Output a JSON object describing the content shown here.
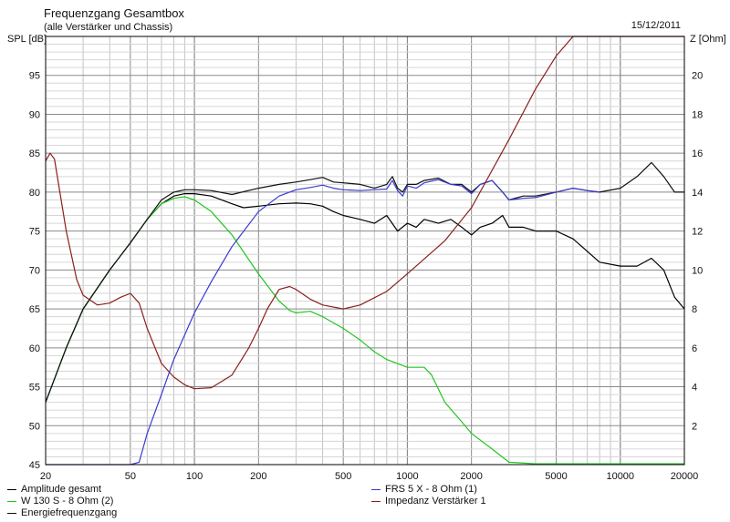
{
  "header": {
    "title": "Frequenzgang Gesamtbox",
    "subtitle": "(alle Verstärker und Chassis)",
    "date": "15/12/2011",
    "left_axis_label": "SPL [dB]",
    "right_axis_label": "Z [Ohm]"
  },
  "chart_data": {
    "type": "line",
    "x_scale": "log",
    "xlim": [
      20,
      20000
    ],
    "ylim_left": [
      45,
      100
    ],
    "ylim_right": [
      0,
      22
    ],
    "grid": true,
    "x_ticks": [
      "20",
      "50",
      "100",
      "200",
      "500",
      "1000",
      "2000",
      "5000",
      "10000",
      "20000"
    ],
    "y_ticks_left": [
      "45",
      "50",
      "55",
      "60",
      "65",
      "70",
      "75",
      "80",
      "85",
      "90",
      "95"
    ],
    "y_ticks_right": [
      "2",
      "4",
      "6",
      "8",
      "10",
      "12",
      "14",
      "16",
      "18",
      "20"
    ],
    "legend_placement": "bottom",
    "series": [
      {
        "name": "Amplitude gesamt",
        "axis": "left",
        "color": "#000000",
        "x": [
          20,
          25,
          30,
          40,
          50,
          60,
          70,
          80,
          90,
          100,
          120,
          150,
          170,
          200,
          250,
          300,
          350,
          400,
          450,
          500,
          600,
          700,
          800,
          900,
          1000,
          1100,
          1200,
          1400,
          1600,
          1800,
          2000,
          2200,
          2500,
          2800,
          3000,
          3500,
          4000,
          5000,
          6000,
          8000,
          10000,
          12000,
          14000,
          16000,
          18000,
          20000
        ],
        "y": [
          53,
          60,
          65,
          70,
          73.5,
          76.5,
          78.5,
          79.5,
          79.8,
          79.8,
          79.5,
          78.5,
          78,
          78.2,
          78.5,
          78.6,
          78.5,
          78.2,
          77.5,
          77,
          76.5,
          76,
          77,
          75,
          76,
          75.5,
          76.5,
          76,
          76.5,
          75.5,
          74.5,
          75.5,
          76,
          77,
          75.5,
          75.5,
          75,
          75,
          74,
          71,
          70.5,
          70.5,
          71.5,
          70,
          66.5,
          65
        ]
      },
      {
        "name": "W 130 S - 8 Ohm (2)",
        "axis": "left",
        "color": "#22c522",
        "x": [
          20,
          25,
          30,
          40,
          50,
          60,
          70,
          80,
          90,
          100,
          120,
          150,
          200,
          250,
          280,
          300,
          350,
          400,
          500,
          600,
          700,
          800,
          1000,
          1200,
          1300,
          1500,
          1800,
          2000,
          2500,
          3000,
          4000,
          5000,
          10000,
          20000
        ],
        "y": [
          53,
          60,
          65,
          70,
          73.5,
          76.5,
          78.5,
          79.2,
          79.4,
          79,
          77.5,
          74.5,
          69.5,
          66,
          64.8,
          64.5,
          64.7,
          64,
          62.5,
          61,
          59.5,
          58.5,
          57.5,
          57.5,
          56.5,
          53,
          50.5,
          49,
          47,
          45.3,
          45.1,
          45.1,
          45.1,
          45.1
        ]
      },
      {
        "name": "Energiefrequenzgang",
        "axis": "left",
        "color": "#111111",
        "x": [
          20,
          25,
          30,
          40,
          50,
          60,
          70,
          80,
          90,
          100,
          120,
          150,
          200,
          250,
          300,
          350,
          400,
          450,
          500,
          600,
          700,
          800,
          850,
          900,
          950,
          1000,
          1100,
          1200,
          1400,
          1600,
          1800,
          2000,
          2200,
          2500,
          2800,
          3000,
          3500,
          4000,
          5000,
          6000,
          7000,
          8000,
          10000,
          12000,
          14000,
          16000,
          18000,
          20000
        ],
        "y": [
          53,
          60,
          65,
          70,
          73.5,
          76.5,
          79,
          80,
          80.3,
          80.3,
          80.2,
          79.7,
          80.5,
          81,
          81.3,
          81.6,
          81.9,
          81.3,
          81.2,
          81,
          80.5,
          81,
          82,
          80.5,
          80,
          81,
          81,
          81.5,
          81.8,
          81,
          81,
          80,
          81,
          81.5,
          80,
          79,
          79.5,
          79.5,
          80,
          80.5,
          80.2,
          80,
          80.5,
          82,
          83.8,
          82,
          80,
          80
        ]
      },
      {
        "name": "FRS 5 X - 8 Ohm (1)",
        "axis": "left",
        "color": "#3a3ad0",
        "x": [
          20,
          30,
          40,
          50,
          55,
          60,
          70,
          80,
          100,
          120,
          150,
          200,
          250,
          300,
          350,
          400,
          450,
          500,
          600,
          700,
          800,
          850,
          900,
          950,
          1000,
          1100,
          1200,
          1400,
          1600,
          1800,
          2000,
          2200,
          2500,
          2800,
          3000,
          3500,
          4000,
          5000,
          6000,
          7000,
          8000
        ],
        "y": [
          45,
          45,
          45,
          45,
          45.3,
          49,
          54,
          58.5,
          64.5,
          68.5,
          73,
          77.5,
          79.5,
          80.3,
          80.6,
          80.9,
          80.5,
          80.3,
          80.2,
          80.3,
          80.4,
          81.5,
          80.2,
          79.5,
          80.8,
          80.5,
          81.2,
          81.6,
          81,
          80.8,
          79.8,
          81,
          81.5,
          80,
          79,
          79.2,
          79.3,
          80,
          80.5,
          80.2,
          80
        ]
      },
      {
        "name": "Impedanz Verstärker 1",
        "axis": "right",
        "color": "#8b1e1e",
        "x": [
          20,
          21,
          22,
          25,
          28,
          30,
          35,
          40,
          45,
          50,
          55,
          60,
          70,
          80,
          90,
          100,
          120,
          150,
          180,
          200,
          220,
          250,
          280,
          300,
          350,
          400,
          500,
          600,
          800,
          1000,
          1500,
          2000,
          3000,
          4000,
          5000,
          6000,
          8000,
          10000,
          15000,
          20000
        ],
        "y": [
          15.6,
          16.0,
          15.7,
          12.0,
          9.5,
          8.7,
          8.2,
          8.3,
          8.6,
          8.8,
          8.3,
          7.0,
          5.2,
          4.5,
          4.1,
          3.9,
          3.95,
          4.6,
          6.0,
          7.0,
          8.0,
          9.0,
          9.15,
          9.0,
          8.5,
          8.2,
          8.0,
          8.2,
          8.9,
          9.8,
          11.5,
          13.2,
          16.7,
          19.3,
          21.0,
          22,
          22,
          22,
          22,
          22
        ]
      }
    ]
  }
}
